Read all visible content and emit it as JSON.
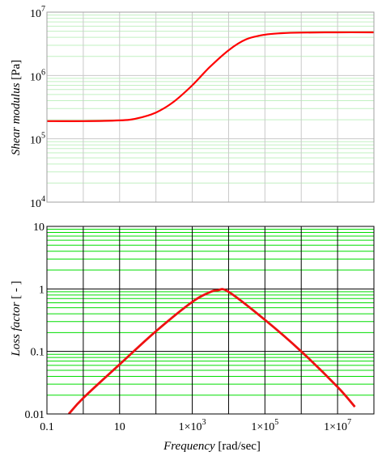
{
  "chart_data": [
    {
      "type": "line",
      "ylabel_italic": "Shear modulus",
      "ylabel_unit": "[Pa]",
      "xscale": "log",
      "yscale": "log",
      "xlim": [
        0.1,
        100000000
      ],
      "ylim": [
        10000,
        10000000
      ],
      "grid": true,
      "grid_color": "#c9c9c9",
      "minor_grid_color": "#c2f0c2",
      "frame_color": "#a0a0a0",
      "ytick_labels": [
        {
          "base": "10",
          "exp": "4",
          "value": 10000
        },
        {
          "base": "10",
          "exp": "5",
          "value": 100000
        },
        {
          "base": "10",
          "exp": "6",
          "value": 1000000
        },
        {
          "base": "10",
          "exp": "7",
          "value": 10000000
        }
      ],
      "series": [
        {
          "color": "#ff0000",
          "x": [
            0.1,
            1,
            10,
            30,
            100,
            300,
            1000,
            3000,
            10000,
            30000,
            100000,
            300000,
            1000000,
            10000000,
            100000000
          ],
          "y": [
            190000,
            190000,
            195000,
            210000,
            260000,
            380000,
            700000,
            1350000,
            2500000,
            3700000,
            4400000,
            4650000,
            4750000,
            4800000,
            4800000
          ]
        }
      ]
    },
    {
      "type": "line",
      "ylabel_italic": "Loss factor",
      "ylabel_unit": "[ - ]",
      "xlabel_italic": "Frequency",
      "xlabel_unit": "[rad/sec]",
      "xscale": "log",
      "yscale": "log",
      "xlim": [
        0.1,
        100000000
      ],
      "ylim": [
        0.01,
        10
      ],
      "grid": true,
      "grid_color": "#000000",
      "minor_grid_color": "#00dd00",
      "frame_color": "#000000",
      "ytick_labels": [
        {
          "label": "0.01",
          "value": 0.01
        },
        {
          "label": "0.1",
          "value": 0.1
        },
        {
          "label": "1",
          "value": 1
        },
        {
          "label": "10",
          "value": 10
        }
      ],
      "xtick_labels": [
        {
          "label": "0.1",
          "value": 0.1
        },
        {
          "label": "10",
          "value": 10
        },
        {
          "label": "1×10",
          "exp": "3",
          "value": 1000
        },
        {
          "label": "1×10",
          "exp": "5",
          "value": 100000
        },
        {
          "label": "1×10",
          "exp": "7",
          "value": 10000000
        }
      ],
      "series": [
        {
          "color": "#ee1111",
          "x": [
            0.4,
            1,
            10,
            100,
            1000,
            3000,
            5000,
            10000,
            100000,
            1000000,
            10000000,
            30000000
          ],
          "y": [
            0.01,
            0.018,
            0.062,
            0.21,
            0.62,
            0.88,
            0.95,
            0.9,
            0.32,
            0.1,
            0.027,
            0.013
          ]
        }
      ]
    }
  ]
}
